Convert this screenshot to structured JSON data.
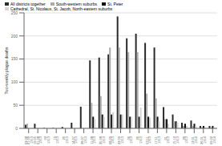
{
  "chart_data": {
    "type": "bar",
    "ylabel": "Two-weekly plague deaths",
    "categories": [
      "02.08\n01.09\n1313",
      "19.05\n01.08\n1313",
      "02\n1313",
      "19\n1313",
      "20\n1313",
      "14.07\n1313",
      "28.07\n1313",
      "11.08\n1313",
      "25.08\n1313",
      "08.09\n1313",
      "22.09\n1313",
      "06\n1313",
      "20\n1313",
      "03.11\n1313",
      "17.11\n1313",
      "01\n1313",
      "15.12\n1313",
      "29\n1313",
      "12.01\n1314",
      "26.01\n1314",
      "09.02\n1314"
    ],
    "series": [
      {
        "name": "All districts together",
        "color": "#2a2a2a",
        "values": [
          8,
          10,
          1,
          1,
          3,
          12,
          47,
          147,
          153,
          160,
          242,
          195,
          205,
          185,
          175,
          46,
          30,
          12,
          17,
          5,
          5
        ]
      },
      {
        "name": "South-western suburbs",
        "color": "#aaaaaa",
        "values": [
          10,
          0,
          0,
          0,
          0,
          0,
          0,
          55,
          70,
          175,
          175,
          165,
          165,
          75,
          65,
          20,
          15,
          5,
          5,
          2,
          2
        ]
      },
      {
        "name": "St. Peter",
        "color": "#111111",
        "values": [
          0,
          0,
          0,
          0,
          0,
          0,
          0,
          25,
          30,
          30,
          30,
          25,
          25,
          25,
          25,
          20,
          15,
          10,
          10,
          5,
          5
        ]
      },
      {
        "name": "Cathedral, St. Nicolaus, St. Jacob, North-eastern suburbs",
        "color": "#d5d5d5",
        "values": [
          0,
          0,
          0,
          0,
          0,
          0,
          0,
          20,
          25,
          35,
          30,
          25,
          45,
          23,
          15,
          10,
          12,
          5,
          5,
          2,
          2
        ]
      }
    ],
    "ylim": [
      0,
      250
    ],
    "yticks": [
      0,
      50,
      100,
      150,
      200,
      250
    ],
    "grid": true,
    "legend": "upper left"
  }
}
